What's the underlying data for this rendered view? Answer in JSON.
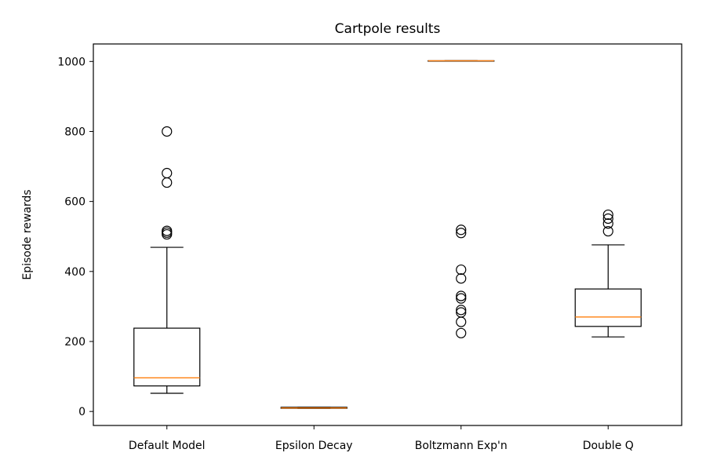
{
  "chart_data": {
    "type": "box",
    "title": "Cartpole results",
    "xlabel": "",
    "ylabel": "Episode rewards",
    "ylim": [
      -40,
      1050
    ],
    "yticks": [
      0,
      200,
      400,
      600,
      800,
      1000
    ],
    "grid": false,
    "median_color": "#ff7f0e",
    "box_color": "#000000",
    "categories": [
      "Default Model",
      "Epsilon Decay",
      "Boltzmann Exp'n",
      "Double Q"
    ],
    "series": [
      {
        "category": "Default Model",
        "whisker_low": 52,
        "q1": 73,
        "median": 96,
        "q3": 238,
        "whisker_high": 469,
        "outliers": [
          800,
          681,
          654,
          516,
          511,
          506
        ]
      },
      {
        "category": "Epsilon Decay",
        "whisker_low": 9,
        "q1": 9,
        "median": 10,
        "q3": 12,
        "whisker_high": 12,
        "outliers": []
      },
      {
        "category": "Boltzmann Exp'n",
        "whisker_low": 1002,
        "q1": 1002,
        "median": 1002,
        "q3": 1002,
        "whisker_high": 1002,
        "outliers": [
          519,
          510,
          405,
          380,
          330,
          323,
          290,
          283,
          256,
          224
        ]
      },
      {
        "category": "Double Q",
        "whisker_low": 213,
        "q1": 243,
        "median": 270,
        "q3": 350,
        "whisker_high": 476,
        "outliers": [
          562,
          551,
          537,
          515
        ]
      }
    ]
  }
}
